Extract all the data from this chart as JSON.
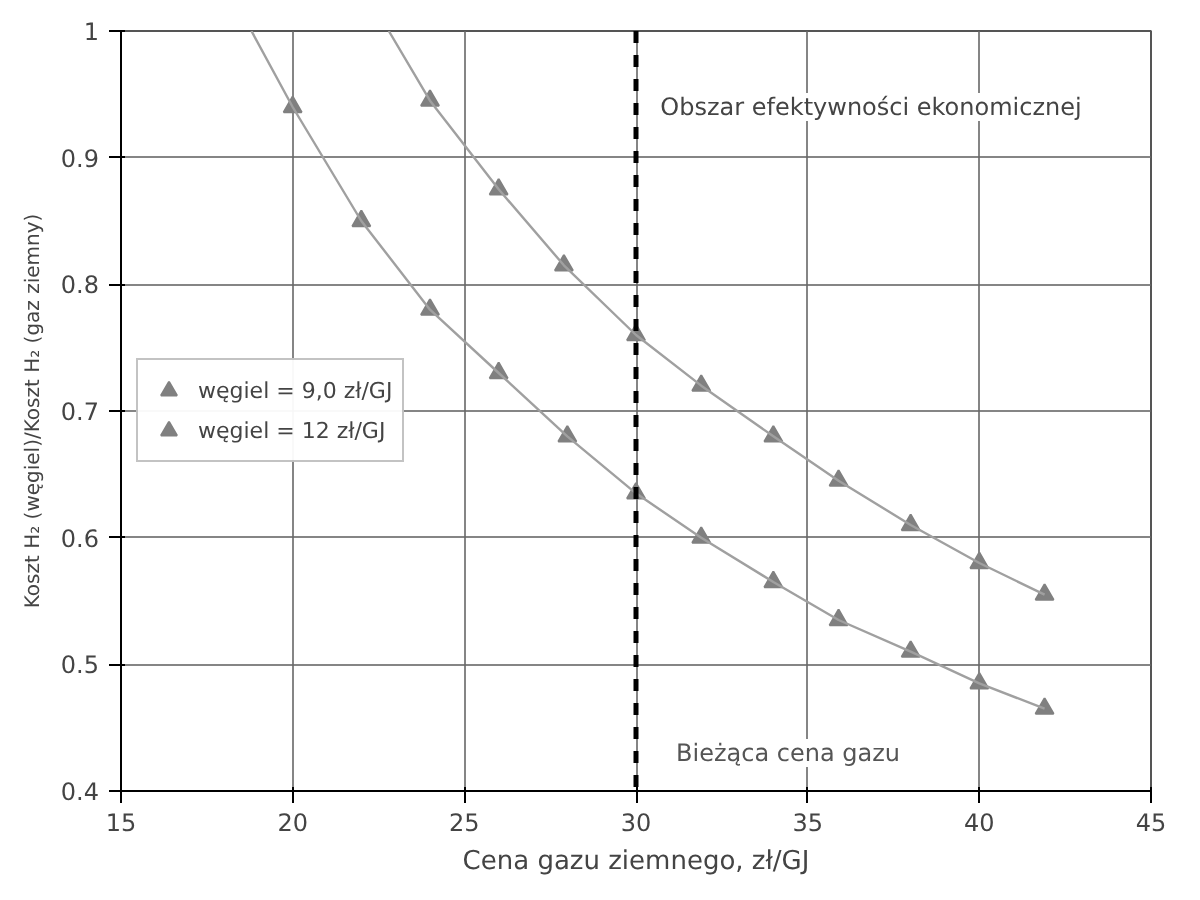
{
  "chart_data": {
    "type": "scatter",
    "xlabel": "Cena gazu ziemnego, zł/GJ",
    "ylabel": "Koszt H₂ (węgiel)/Koszt H₂ (gaz ziemny)",
    "xlim": [
      15,
      45
    ],
    "ylim": [
      0.4,
      1
    ],
    "xticks": [
      15,
      20,
      25,
      30,
      35,
      40,
      45
    ],
    "yticks": [
      {
        "value": 0.4,
        "label": "0.4"
      },
      {
        "value": 0.5,
        "label": "0.5"
      },
      {
        "value": 0.6,
        "label": "0.6"
      },
      {
        "value": 0.7,
        "label": "0.7"
      },
      {
        "value": 0.8,
        "label": "0.8"
      },
      {
        "value": 0.9,
        "label": "0.9"
      },
      {
        "value": 1,
        "label": "1"
      }
    ],
    "grid": true,
    "legend": "left",
    "marker": "triangle",
    "series": [
      {
        "name": "węgiel = 9,0 zł/GJ",
        "color": "#808080",
        "x": [
          20,
          22,
          24,
          26,
          28,
          30,
          31.9,
          34,
          35.9,
          38,
          40,
          41.9
        ],
        "values": [
          0.94,
          0.85,
          0.78,
          0.73,
          0.68,
          0.635,
          0.6,
          0.565,
          0.535,
          0.51,
          0.485,
          0.465
        ]
      },
      {
        "name": "węgiel = 12 zł/GJ",
        "color": "#808080",
        "x": [
          24,
          26,
          27.9,
          30,
          31.9,
          34,
          35.9,
          38,
          40,
          41.9
        ],
        "values": [
          0.945,
          0.875,
          0.815,
          0.76,
          0.72,
          0.68,
          0.645,
          0.61,
          0.58,
          0.555
        ]
      },
      {
        "type": "line",
        "marker": "none",
        "color": "#a0a0a0",
        "x": [
          18.8,
          20,
          22,
          24,
          26,
          28,
          30,
          31.9,
          34,
          35.9,
          38,
          40,
          41.9
        ],
        "values": [
          1,
          0.94,
          0.85,
          0.78,
          0.73,
          0.68,
          0.635,
          0.6,
          0.565,
          0.535,
          0.51,
          0.485,
          0.465
        ]
      },
      {
        "type": "line",
        "marker": "none",
        "color": "#a0a0a0",
        "x": [
          22.8,
          24,
          26,
          27.9,
          30,
          31.9,
          34,
          35.9,
          38,
          40,
          41.9
        ],
        "values": [
          1,
          0.945,
          0.875,
          0.815,
          0.76,
          0.72,
          0.68,
          0.645,
          0.61,
          0.58,
          0.555
        ]
      }
    ],
    "ref_lines": [
      {
        "axis": "x",
        "value": 30,
        "label": "Bieżąca cena gazu",
        "color": "#000000",
        "line_style": "dashed"
      }
    ],
    "annotations": [
      "Obszar efektywności ekonomicznej"
    ]
  }
}
